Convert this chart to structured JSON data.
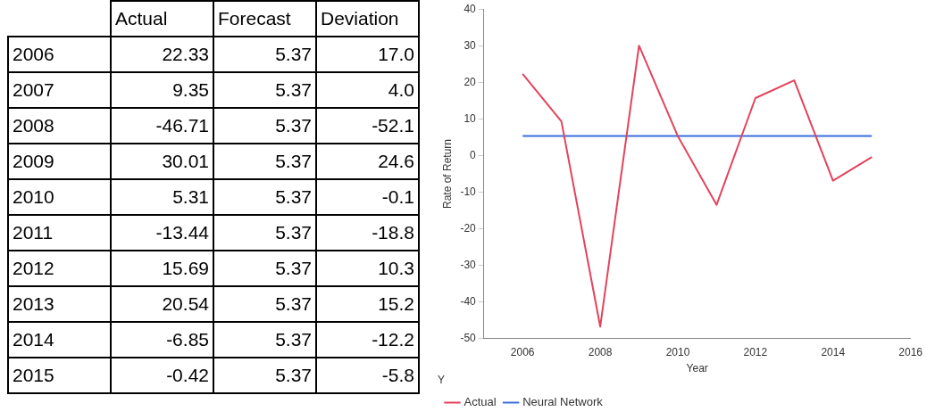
{
  "chart_data": [
    {
      "type": "heatmap",
      "categories": [
        "Actual",
        "Forecast",
        "Deviation"
      ],
      "y_categories": [
        "2006",
        "2007",
        "2008",
        "2009",
        "2010",
        "2011",
        "2012",
        "2013",
        "2014",
        "2015"
      ],
      "cells": [
        [
          22.33,
          5.37,
          17.0
        ],
        [
          9.35,
          5.37,
          4.0
        ],
        [
          -46.71,
          5.37,
          -52.1
        ],
        [
          30.01,
          5.37,
          24.6
        ],
        [
          5.31,
          5.37,
          -0.1
        ],
        [
          -13.44,
          5.37,
          -18.8
        ],
        [
          15.69,
          5.37,
          10.3
        ],
        [
          20.54,
          5.37,
          15.2
        ],
        [
          -6.85,
          5.37,
          -12.2
        ],
        [
          -0.42,
          5.37,
          -5.8
        ]
      ],
      "cell_labels": [
        [
          "22.33",
          "5.37",
          "17.0"
        ],
        [
          "9.35",
          "5.37",
          "4.0"
        ],
        [
          "-46.71",
          "5.37",
          "-52.1"
        ],
        [
          "30.01",
          "5.37",
          "24.6"
        ],
        [
          "5.31",
          "5.37",
          "-0.1"
        ],
        [
          "-13.44",
          "5.37",
          "-18.8"
        ],
        [
          "15.69",
          "5.37",
          "10.3"
        ],
        [
          "20.54",
          "5.37",
          "15.2"
        ],
        [
          "-6.85",
          "5.37",
          "-12.2"
        ],
        [
          "-0.42",
          "5.37",
          "-5.8"
        ]
      ]
    },
    {
      "type": "line",
      "x": [
        2006,
        2007,
        2008,
        2009,
        2010,
        2011,
        2012,
        2013,
        2014,
        2015
      ],
      "xlabel": "Year",
      "ylabel": "Rate of Return",
      "legend_title": "Y",
      "legend": "bottom",
      "grid": false,
      "xlim": [
        2005,
        2016
      ],
      "xticks": [
        2006,
        2008,
        2010,
        2012,
        2014,
        2016
      ],
      "ylim": [
        -50,
        40
      ],
      "yticks": [
        -50,
        -40,
        -30,
        -20,
        -10,
        0,
        10,
        20,
        30,
        40
      ],
      "series": [
        {
          "name": "Actual",
          "color": "#e3435b",
          "values": [
            22.33,
            9.35,
            -46.71,
            30.01,
            5.31,
            -13.44,
            15.69,
            20.54,
            -6.85,
            -0.42
          ]
        },
        {
          "name": "Neural Network",
          "color": "#3a6ee0",
          "values": [
            5.37,
            5.37,
            5.37,
            5.37,
            5.37,
            5.37,
            5.37,
            5.37,
            5.37,
            5.37
          ]
        }
      ]
    }
  ]
}
